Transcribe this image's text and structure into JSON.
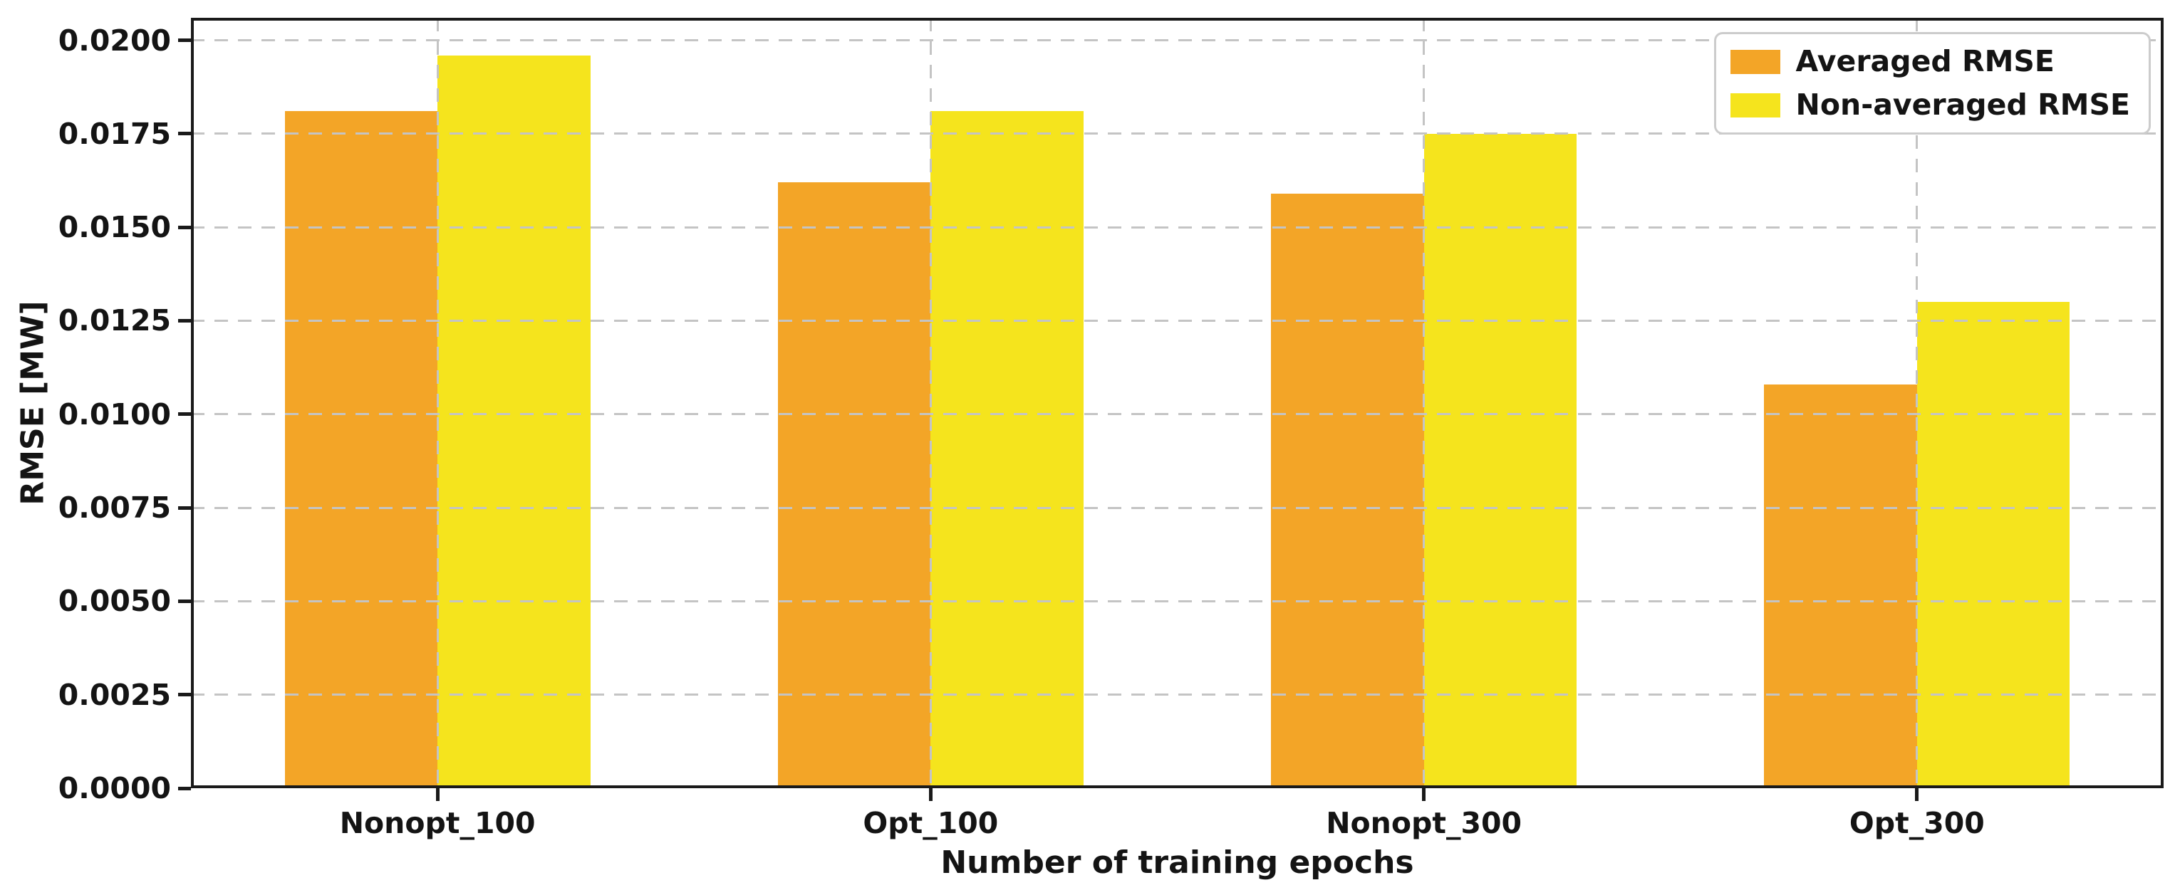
{
  "figure": {
    "background": "#ffffff",
    "text_color": "#141414",
    "grid_color": "#c4c4c4",
    "frame_color": "#1a1a1a",
    "legend_border_color": "#cccccc"
  },
  "chart_data": {
    "type": "bar",
    "title": "",
    "xlabel": "Number of training epochs",
    "ylabel": "RMSE [MW]",
    "categories": [
      "Nonopt_100",
      "Opt_100",
      "Nonopt_300",
      "Opt_300"
    ],
    "series": [
      {
        "name": "Averaged RMSE",
        "color": "#F3A527",
        "values": [
          0.0181,
          0.0162,
          0.0159,
          0.0108
        ]
      },
      {
        "name": "Non-averaged RMSE",
        "color": "#F5E41D",
        "values": [
          0.0196,
          0.0181,
          0.0175,
          0.013
        ]
      }
    ],
    "ylim": [
      0,
      0.0206
    ],
    "yticks": [
      "0.0000",
      "0.0025",
      "0.0050",
      "0.0075",
      "0.0100",
      "0.0125",
      "0.0150",
      "0.0175",
      "0.0200"
    ],
    "grid": "dashed, horizontal and vertical, drawn above bars",
    "legend_position": "upper right",
    "bar_width_fraction": 0.31
  }
}
